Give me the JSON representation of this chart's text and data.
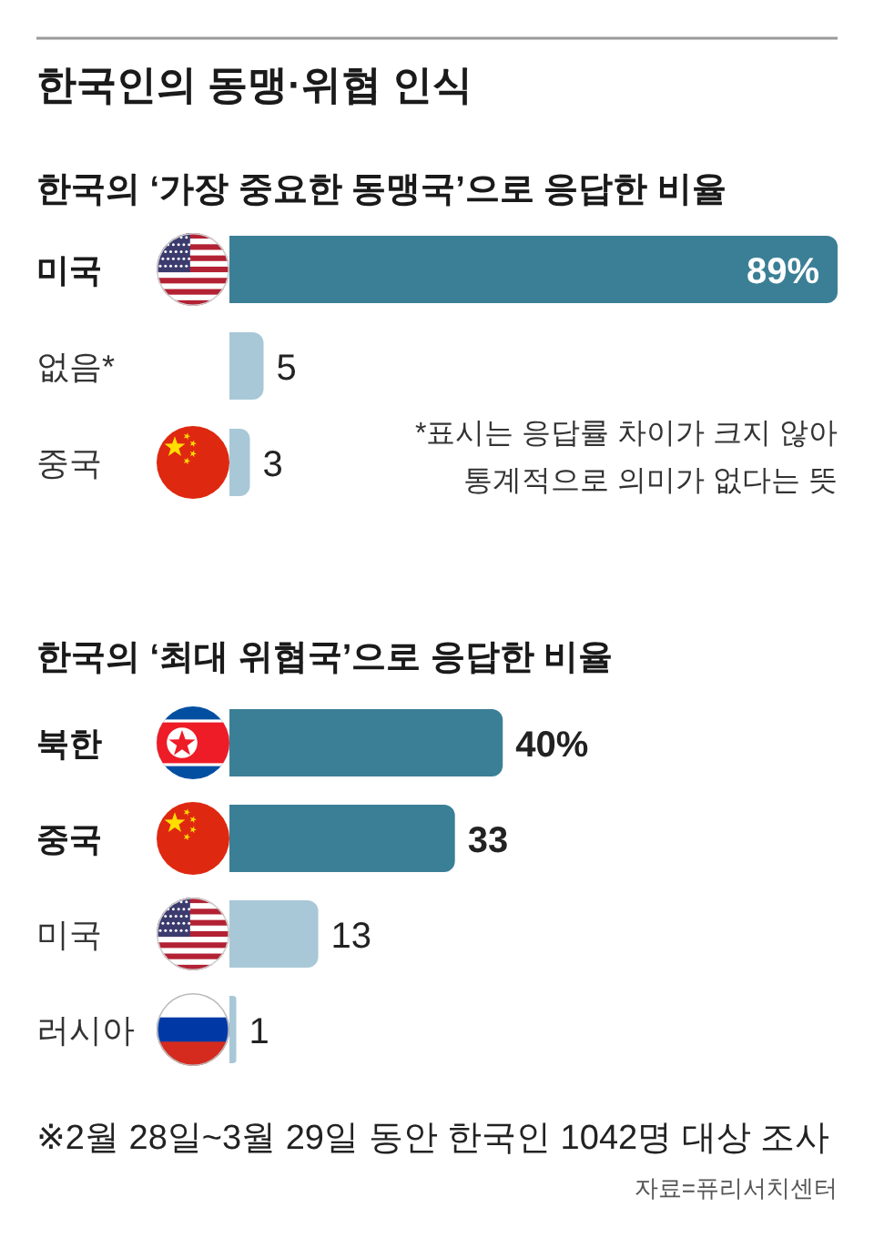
{
  "chart_data": [
    {
      "type": "bar",
      "orientation": "horizontal",
      "title": "한국인의 동맹·위협 인식",
      "subtitle": "한국의 ‘가장 중요한 동맹국’으로 응답한 비율",
      "categories": [
        "미국",
        "없음*",
        "중국"
      ],
      "values": [
        89,
        5,
        3
      ],
      "colors": [
        "#3b7f96",
        "#a8c8d7",
        "#a8c8d7"
      ],
      "value_labels": [
        "89%",
        "5",
        "3"
      ],
      "annotations": [
        "*표시는 응답률 차이가 크지 않아 통계적으로 의미가 없다는 뜻"
      ]
    },
    {
      "type": "bar",
      "orientation": "horizontal",
      "title": "한국의 ‘최대 위협국’으로 응답한 비율",
      "categories": [
        "북한",
        "중국",
        "미국",
        "러시아"
      ],
      "values": [
        40,
        33,
        13,
        1
      ],
      "colors": [
        "#3b7f96",
        "#3b7f96",
        "#a8c8d7",
        "#a8c8d7"
      ],
      "value_labels": [
        "40%",
        "33",
        "13",
        "1"
      ],
      "annotations": [
        "※2월 28일~3월 29일 동안 한국인 1042명 대상 조사",
        "자료=퓨리서치센터"
      ]
    }
  ]
}
